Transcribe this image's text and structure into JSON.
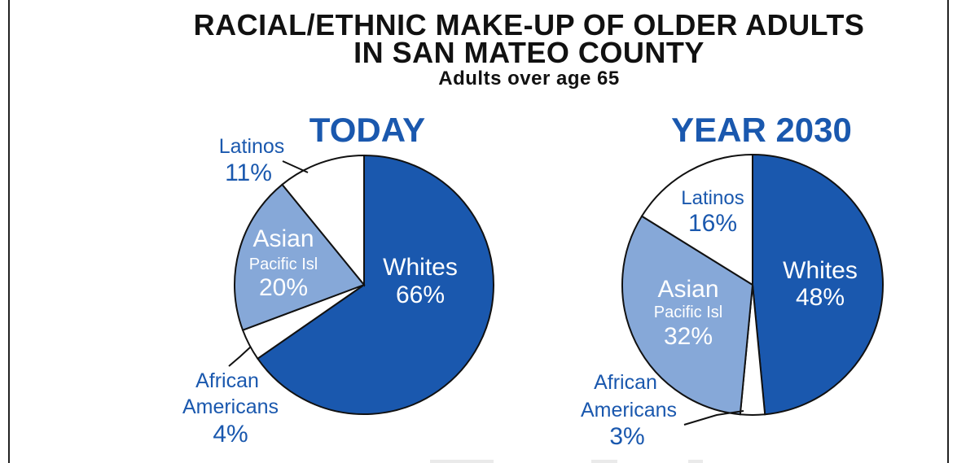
{
  "title_line1": "RACIAL/ETHNIC MAKE-UP OF OLDER ADULTS",
  "title_line2": "IN SAN MATEO COUNTY",
  "subtitle": "Adults over age 65",
  "colors": {
    "whites": "#1a58ae",
    "asian": "#86a8d8",
    "other": "#ffffff",
    "label_blue": "#1a58ae"
  },
  "chart_data": [
    {
      "type": "pie",
      "title": "TODAY",
      "slices": [
        {
          "label": "Whites",
          "sub": "",
          "value": 66,
          "display": "66%"
        },
        {
          "label": "African Americans",
          "sub": "",
          "value": 4,
          "display": "4%"
        },
        {
          "label": "Asian",
          "sub": "Pacific Isl",
          "value": 20,
          "display": "20%"
        },
        {
          "label": "Latinos",
          "sub": "",
          "value": 11,
          "display": "11%"
        }
      ],
      "ext_labels": {
        "latinos_name": "Latinos",
        "latinos_pct": "11%",
        "african_line1": "African",
        "african_line2": "Americans",
        "african_pct": "4%"
      }
    },
    {
      "type": "pie",
      "title": "YEAR 2030",
      "slices": [
        {
          "label": "Whites",
          "sub": "",
          "value": 48,
          "display": "48%"
        },
        {
          "label": "African Americans",
          "sub": "",
          "value": 3,
          "display": "3%"
        },
        {
          "label": "Asian",
          "sub": "Pacific Isl",
          "value": 32,
          "display": "32%"
        },
        {
          "label": "Latinos",
          "sub": "",
          "value": 16,
          "display": "16%"
        }
      ],
      "ext_labels": {
        "african_line1": "African",
        "african_line2": "Americans",
        "african_pct": "3%"
      }
    }
  ]
}
